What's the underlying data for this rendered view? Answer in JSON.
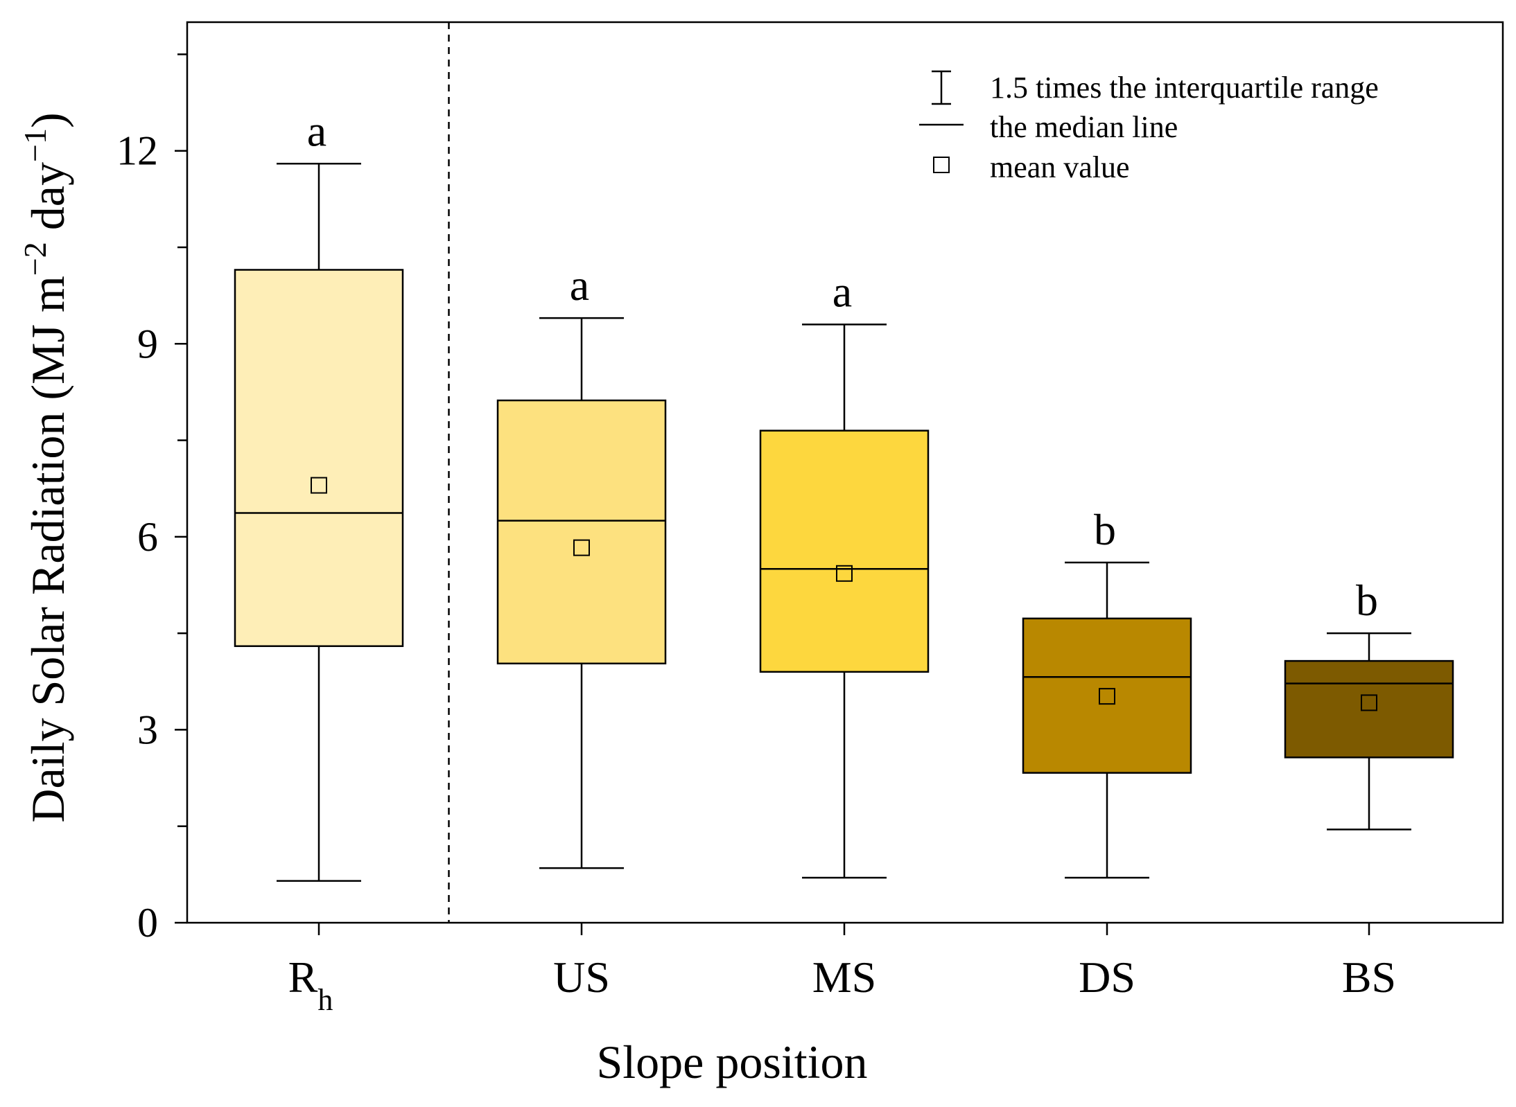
{
  "chart_data": {
    "type": "box",
    "xlabel": "Slope position",
    "ylabel": {
      "text": "Daily Solar Radiation (MJ m",
      "sup1": "−2",
      "mid": " day",
      "sup2": "−1",
      "end": ")"
    },
    "ylim": [
      0,
      14
    ],
    "yticks": [
      0,
      3,
      6,
      9,
      12
    ],
    "grid": false,
    "separator_after_index": 0,
    "categories": [
      {
        "label": "R",
        "sub": "h",
        "whisker_low": 0.65,
        "q1": 4.3,
        "median": 6.37,
        "q3": 10.15,
        "whisker_high": 11.8,
        "mean": 6.8,
        "letter": "a",
        "color": "#FEEEB7"
      },
      {
        "label": "US",
        "sub": "",
        "whisker_low": 0.85,
        "q1": 4.03,
        "median": 6.25,
        "q3": 8.12,
        "whisker_high": 9.4,
        "mean": 5.83,
        "letter": "a",
        "color": "#FDE17F"
      },
      {
        "label": "MS",
        "sub": "",
        "whisker_low": 0.7,
        "q1": 3.9,
        "median": 5.5,
        "q3": 7.65,
        "whisker_high": 9.3,
        "mean": 5.43,
        "letter": "a",
        "color": "#FDD73E"
      },
      {
        "label": "DS",
        "sub": "",
        "whisker_low": 0.7,
        "q1": 2.33,
        "median": 3.82,
        "q3": 4.73,
        "whisker_high": 5.6,
        "mean": 3.52,
        "letter": "b",
        "color": "#B98800"
      },
      {
        "label": "BS",
        "sub": "",
        "whisker_low": 1.45,
        "q1": 2.57,
        "median": 3.72,
        "q3": 4.07,
        "whisker_high": 4.5,
        "mean": 3.42,
        "letter": "b",
        "color": "#7D5A00"
      }
    ],
    "legend": {
      "placement": "top-right",
      "items": [
        {
          "symbol": "whisker",
          "label": "1.5 times the interquartile range"
        },
        {
          "symbol": "line",
          "label": "the median line"
        },
        {
          "symbol": "square",
          "label": "mean value"
        }
      ]
    }
  }
}
